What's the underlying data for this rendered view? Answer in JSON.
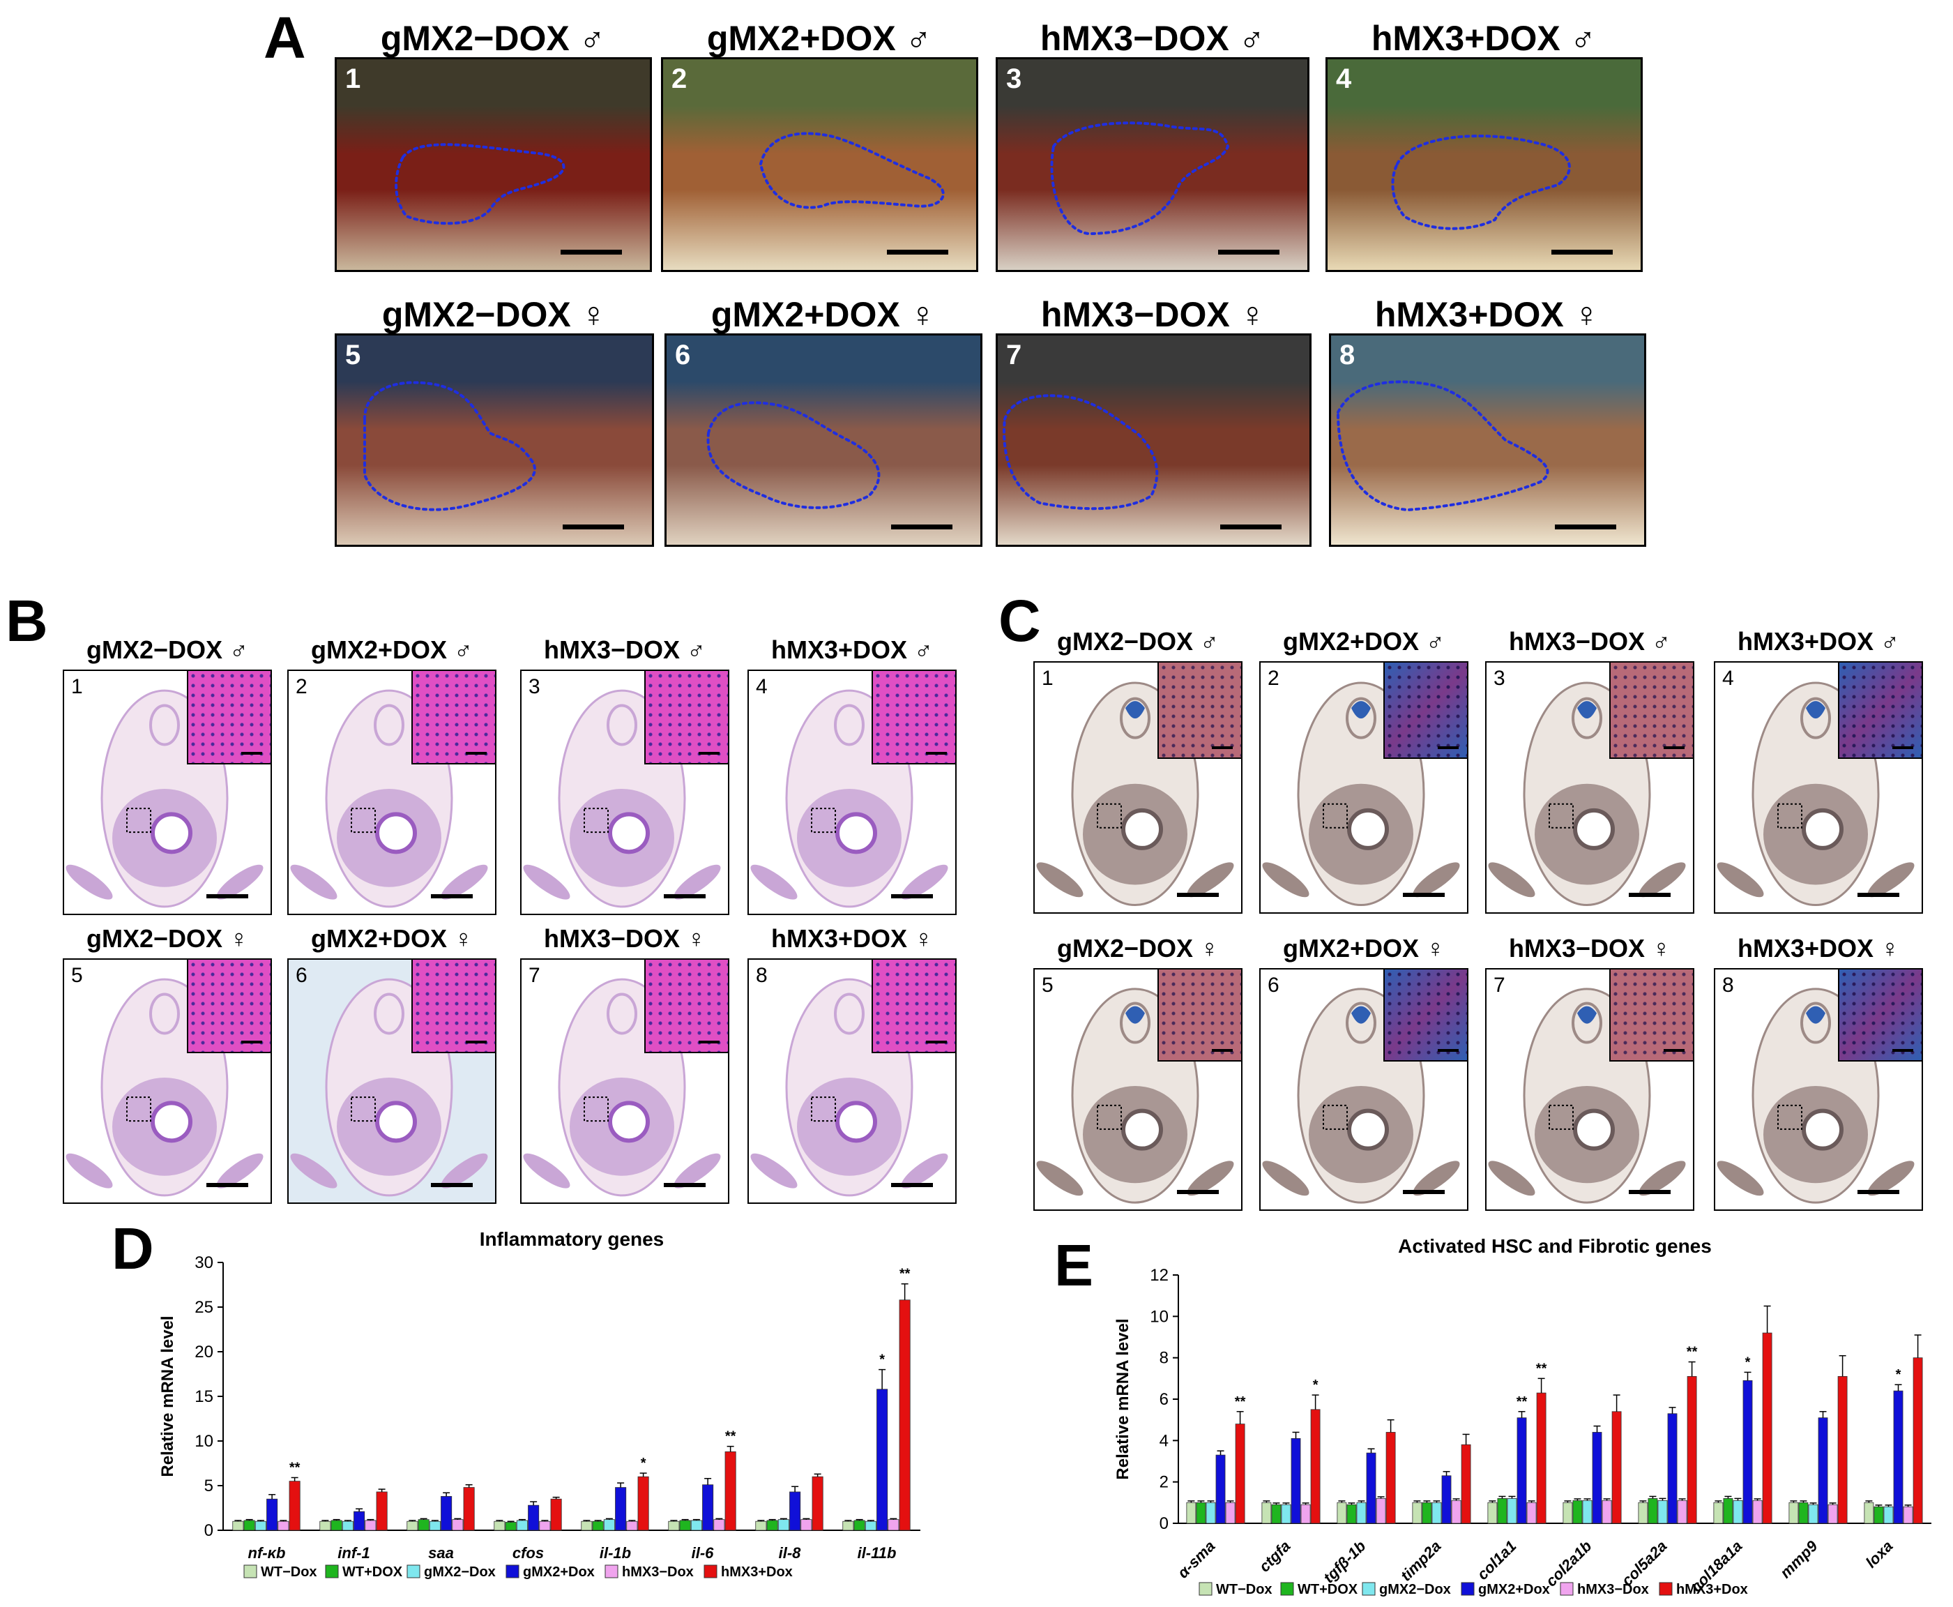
{
  "panels": {
    "A": {
      "letter": "A",
      "photos": [
        {
          "num": "1",
          "title": "gMX2−DOX ♂"
        },
        {
          "num": "2",
          "title": "gMX2+DOX ♂"
        },
        {
          "num": "3",
          "title": "hMX3−DOX ♂"
        },
        {
          "num": "4",
          "title": "hMX3+DOX ♂"
        },
        {
          "num": "5",
          "title": "gMX2−DOX ♀"
        },
        {
          "num": "6",
          "title": "gMX2+DOX ♀"
        },
        {
          "num": "7",
          "title": "hMX3−DOX ♀"
        },
        {
          "num": "8",
          "title": "hMX3+DOX ♀"
        }
      ]
    },
    "B": {
      "letter": "B",
      "sections": [
        {
          "num": "1",
          "title": "gMX2−DOX ♂"
        },
        {
          "num": "2",
          "title": "gMX2+DOX ♂"
        },
        {
          "num": "3",
          "title": "hMX3−DOX ♂"
        },
        {
          "num": "4",
          "title": "hMX3+DOX ♂"
        },
        {
          "num": "5",
          "title": "gMX2−DOX ♀"
        },
        {
          "num": "6",
          "title": "gMX2+DOX ♀"
        },
        {
          "num": "7",
          "title": "hMX3−DOX ♀"
        },
        {
          "num": "8",
          "title": "hMX3+DOX ♀"
        }
      ]
    },
    "C": {
      "letter": "C",
      "sections": [
        {
          "num": "1",
          "title": "gMX2−DOX ♂"
        },
        {
          "num": "2",
          "title": "gMX2+DOX ♂"
        },
        {
          "num": "3",
          "title": "hMX3−DOX ♂"
        },
        {
          "num": "4",
          "title": "hMX3+DOX ♂"
        },
        {
          "num": "5",
          "title": "gMX2−DOX ♀"
        },
        {
          "num": "6",
          "title": "gMX2+DOX ♀"
        },
        {
          "num": "7",
          "title": "hMX3−DOX ♀"
        },
        {
          "num": "8",
          "title": "hMX3+DOX ♀"
        }
      ]
    },
    "D": {
      "letter": "D"
    },
    "E": {
      "letter": "E"
    }
  },
  "colors": {
    "he_tissue": "#c9a6d6",
    "he_liver": "#e04fc4",
    "trichrome_tissue": "#9d8a86",
    "trichrome_blue": "#2f5fb3",
    "outline_blue": "#1f2ee0"
  },
  "chart_data": [
    {
      "id": "D",
      "type": "bar",
      "title": "Inflammatory genes",
      "xlabel": "",
      "ylabel": "Relative mRNA level",
      "ylim": [
        0,
        30
      ],
      "yticks": [
        0,
        5,
        10,
        15,
        20,
        25,
        30
      ],
      "grid": false,
      "legend_position": "bottom",
      "categories": [
        "nf-κb",
        "inf-1",
        "saa",
        "cfos",
        "il-1b",
        "il-6",
        "il-8",
        "il-11b"
      ],
      "series": [
        {
          "name": "WT−Dox",
          "color": "#c6e3b4",
          "values": [
            1.0,
            1.0,
            1.0,
            1.0,
            1.0,
            1.0,
            1.0,
            1.0
          ],
          "errors": [
            0.1,
            0.1,
            0.1,
            0.1,
            0.1,
            0.1,
            0.1,
            0.1
          ]
        },
        {
          "name": "WT+DOX",
          "color": "#1fb51f",
          "values": [
            1.1,
            1.1,
            1.2,
            0.9,
            1.0,
            1.1,
            1.1,
            1.1
          ],
          "errors": [
            0.1,
            0.1,
            0.1,
            0.1,
            0.1,
            0.1,
            0.1,
            0.1
          ]
        },
        {
          "name": "gMX2−Dox",
          "color": "#7fe7ee",
          "values": [
            1.0,
            1.0,
            1.0,
            1.1,
            1.2,
            1.1,
            1.2,
            1.0
          ],
          "errors": [
            0.1,
            0.1,
            0.1,
            0.1,
            0.1,
            0.1,
            0.1,
            0.1
          ]
        },
        {
          "name": "gMX2+Dox",
          "color": "#1010d8",
          "values": [
            3.5,
            2.1,
            3.8,
            2.8,
            4.8,
            5.1,
            4.3,
            15.8
          ],
          "errors": [
            0.5,
            0.3,
            0.4,
            0.4,
            0.5,
            0.7,
            0.6,
            2.2
          ]
        },
        {
          "name": "hMX3−Dox",
          "color": "#f0a4ee",
          "values": [
            1.0,
            1.1,
            1.2,
            1.0,
            1.0,
            1.2,
            1.2,
            1.2
          ],
          "errors": [
            0.1,
            0.1,
            0.1,
            0.1,
            0.1,
            0.1,
            0.1,
            0.1
          ]
        },
        {
          "name": "hMX3+Dox",
          "color": "#e41010",
          "values": [
            5.5,
            4.3,
            4.8,
            3.5,
            6.0,
            8.8,
            6.0,
            25.8
          ],
          "errors": [
            0.4,
            0.3,
            0.3,
            0.2,
            0.4,
            0.6,
            0.3,
            1.8
          ]
        }
      ],
      "significance": [
        {
          "category": "nf-κb",
          "series": "hMX3+Dox",
          "label": "**"
        },
        {
          "category": "il-1b",
          "series": "hMX3+Dox",
          "label": "*"
        },
        {
          "category": "il-6",
          "series": "hMX3+Dox",
          "label": "**"
        },
        {
          "category": "il-11b",
          "series": "gMX2+Dox",
          "label": "*"
        },
        {
          "category": "il-11b",
          "series": "hMX3+Dox",
          "label": "**"
        }
      ]
    },
    {
      "id": "E",
      "type": "bar",
      "title": "Activated HSC and Fibrotic genes",
      "xlabel": "",
      "ylabel": "Relative mRNA level",
      "ylim": [
        0,
        12
      ],
      "yticks": [
        0,
        2,
        4,
        6,
        8,
        10,
        12
      ],
      "grid": false,
      "legend_position": "bottom",
      "categories": [
        "α-sma",
        "ctgfa",
        "tgfβ-1b",
        "timp2a",
        "col1a1",
        "col2a1b",
        "col5a2a",
        "col18a1a",
        "mmp9",
        "loxa"
      ],
      "series": [
        {
          "name": "WT−Dox",
          "color": "#c6e3b4",
          "values": [
            1.0,
            1.0,
            1.0,
            1.0,
            1.0,
            1.0,
            1.0,
            1.0,
            1.0,
            1.0
          ],
          "errors": [
            0.08,
            0.08,
            0.08,
            0.08,
            0.08,
            0.08,
            0.08,
            0.08,
            0.08,
            0.08
          ]
        },
        {
          "name": "WT+DOX",
          "color": "#1fb51f",
          "values": [
            1.0,
            0.9,
            0.9,
            1.0,
            1.2,
            1.1,
            1.2,
            1.2,
            1.0,
            0.8
          ],
          "errors": [
            0.08,
            0.08,
            0.08,
            0.08,
            0.1,
            0.08,
            0.1,
            0.1,
            0.08,
            0.08
          ]
        },
        {
          "name": "gMX2−Dox",
          "color": "#7fe7ee",
          "values": [
            1.0,
            0.9,
            1.0,
            1.0,
            1.2,
            1.1,
            1.1,
            1.1,
            0.9,
            0.8
          ],
          "errors": [
            0.08,
            0.08,
            0.08,
            0.08,
            0.1,
            0.08,
            0.1,
            0.1,
            0.08,
            0.08
          ]
        },
        {
          "name": "gMX2+Dox",
          "color": "#1010d8",
          "values": [
            3.3,
            4.1,
            3.4,
            2.3,
            5.1,
            4.4,
            5.3,
            6.9,
            5.1,
            6.4
          ],
          "errors": [
            0.2,
            0.3,
            0.2,
            0.2,
            0.3,
            0.3,
            0.3,
            0.4,
            0.3,
            0.3
          ]
        },
        {
          "name": "hMX3−Dox",
          "color": "#f0a4ee",
          "values": [
            1.0,
            0.9,
            1.2,
            1.1,
            1.0,
            1.1,
            1.1,
            1.1,
            0.9,
            0.8
          ],
          "errors": [
            0.08,
            0.08,
            0.08,
            0.08,
            0.08,
            0.08,
            0.08,
            0.08,
            0.08,
            0.08
          ]
        },
        {
          "name": "hMX3+Dox",
          "color": "#e41010",
          "values": [
            4.8,
            5.5,
            4.4,
            3.8,
            6.3,
            5.4,
            7.1,
            9.2,
            7.1,
            8.0
          ],
          "errors": [
            0.6,
            0.7,
            0.6,
            0.5,
            0.7,
            0.8,
            0.7,
            1.3,
            1.0,
            1.1
          ]
        }
      ],
      "significance": [
        {
          "category": "α-sma",
          "series": "hMX3+Dox",
          "label": "**"
        },
        {
          "category": "ctgfa",
          "series": "hMX3+Dox",
          "label": "*"
        },
        {
          "category": "col1a1",
          "series": "gMX2+Dox",
          "label": "**"
        },
        {
          "category": "col1a1",
          "series": "hMX3+Dox",
          "label": "**"
        },
        {
          "category": "col5a2a",
          "series": "hMX3+Dox",
          "label": "**"
        },
        {
          "category": "col18a1a",
          "series": "gMX2+Dox",
          "label": "*"
        },
        {
          "category": "loxa",
          "series": "gMX2+Dox",
          "label": "*"
        }
      ]
    }
  ]
}
